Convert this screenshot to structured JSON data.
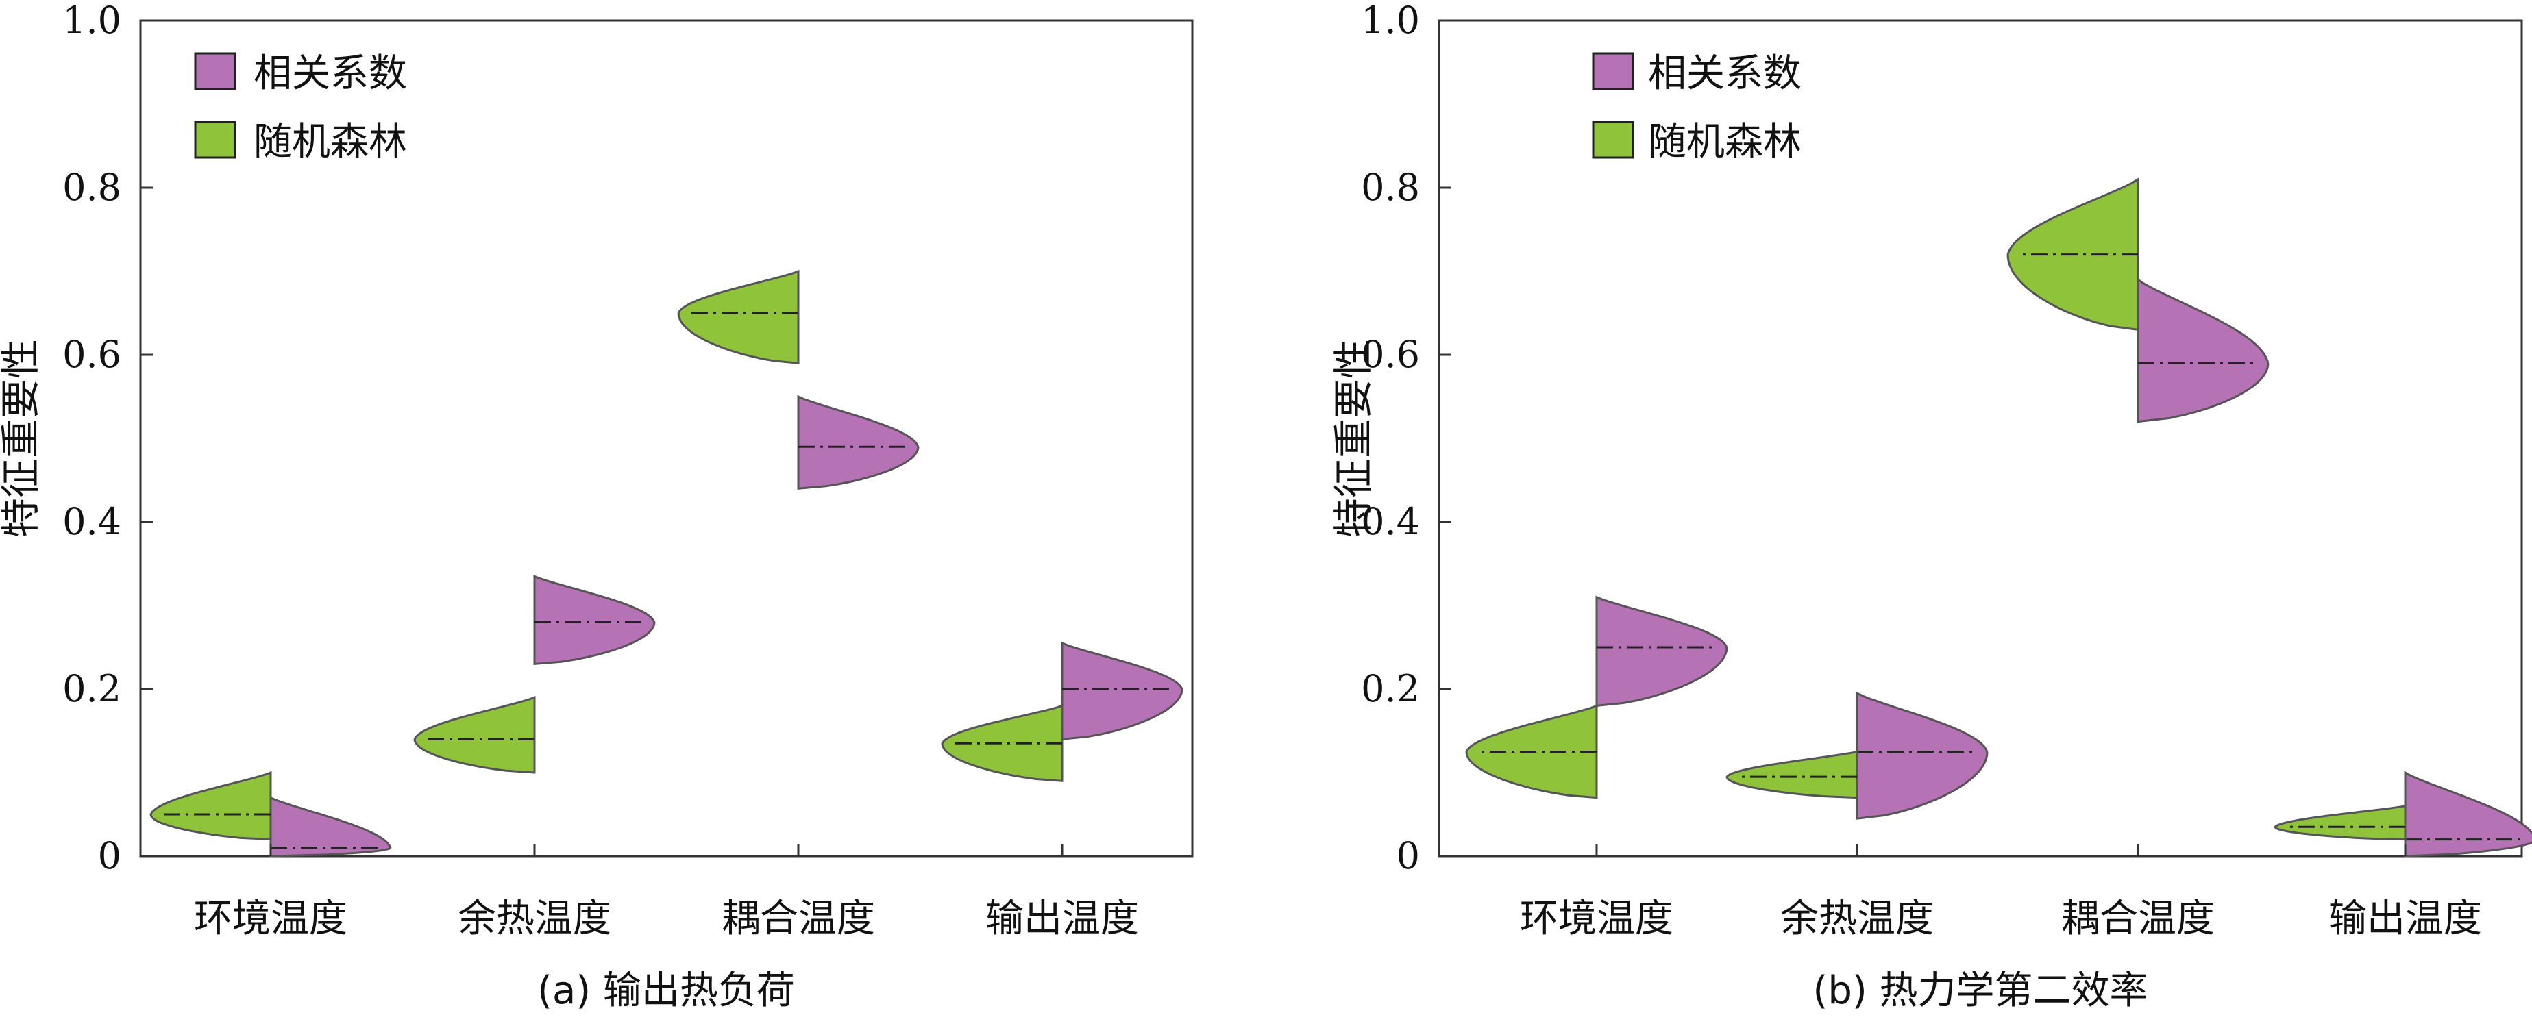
{
  "colors": {
    "correlation": "#b572b5",
    "random_forest": "#8fc43a",
    "outline": "#555555",
    "median_line": "#222222"
  },
  "legend": [
    "相关系数",
    "随机森林"
  ],
  "chart_data": [
    {
      "type": "violin",
      "title": "",
      "caption": "(a) 输出热负荷",
      "ylabel": "特征重要性",
      "xlabel": "",
      "ylim": [
        0,
        1.0
      ],
      "yticks": [
        "0",
        "0.2",
        "0.4",
        "0.6",
        "0.8",
        "1.0"
      ],
      "categories": [
        "环境温度",
        "余热温度",
        "耦合温度",
        "输出温度"
      ],
      "legend_position": "top-left",
      "series": [
        {
          "name": "相关系数",
          "side": "right",
          "medians": [
            0.01,
            0.28,
            0.49,
            0.2
          ],
          "ranges": [
            [
              0.0,
              0.07
            ],
            [
              0.23,
              0.335
            ],
            [
              0.44,
              0.55
            ],
            [
              0.14,
              0.255
            ]
          ]
        },
        {
          "name": "随机森林",
          "side": "left",
          "medians": [
            0.05,
            0.14,
            0.65,
            0.135
          ],
          "ranges": [
            [
              0.02,
              0.1
            ],
            [
              0.1,
              0.19
            ],
            [
              0.59,
              0.7
            ],
            [
              0.09,
              0.18
            ]
          ]
        }
      ]
    },
    {
      "type": "violin",
      "title": "",
      "caption": "(b) 热力学第二效率",
      "ylabel": "特征重要性",
      "xlabel": "",
      "ylim": [
        0,
        1.0
      ],
      "yticks": [
        "0",
        "0.2",
        "0.4",
        "0.6",
        "0.8",
        "1.0"
      ],
      "categories": [
        "环境温度",
        "余热温度",
        "耦合温度",
        "输出温度"
      ],
      "legend_position": "top-left",
      "series": [
        {
          "name": "相关系数",
          "side": "right",
          "medians": [
            0.25,
            0.125,
            0.59,
            0.02
          ],
          "ranges": [
            [
              0.18,
              0.31
            ],
            [
              0.045,
              0.195
            ],
            [
              0.52,
              0.69
            ],
            [
              0.0,
              0.1
            ]
          ]
        },
        {
          "name": "随机森林",
          "side": "left",
          "medians": [
            0.125,
            0.095,
            0.72,
            0.035
          ],
          "ranges": [
            [
              0.07,
              0.18
            ],
            [
              0.07,
              0.125
            ],
            [
              0.63,
              0.81
            ],
            [
              0.02,
              0.06
            ]
          ]
        }
      ]
    }
  ]
}
